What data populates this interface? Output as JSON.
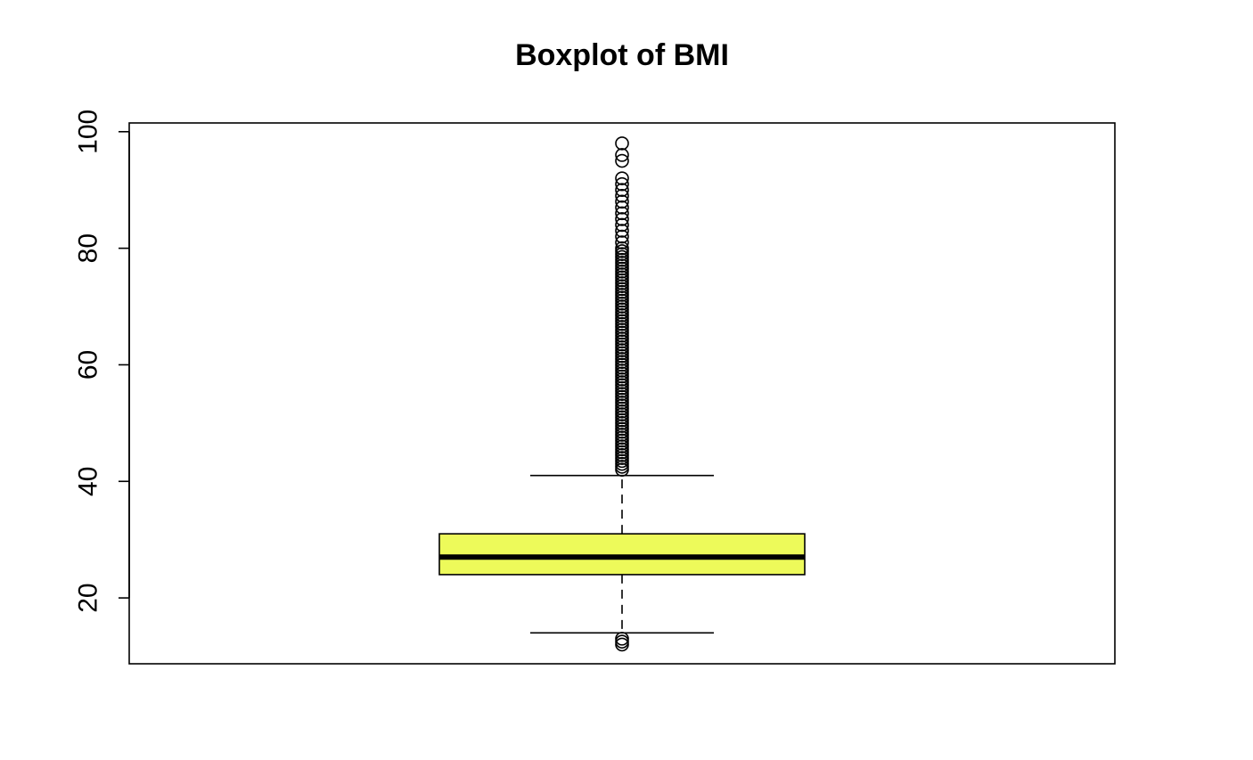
{
  "chart_data": {
    "type": "boxplot",
    "title": "Boxplot of BMI",
    "xlabel": "",
    "ylabel": "",
    "ylim": [
      8.7,
      101.5
    ],
    "yticks": [
      20,
      40,
      60,
      80,
      100
    ],
    "ytick_labels": [
      "20",
      "40",
      "60",
      "80",
      "100"
    ],
    "grid": false,
    "box_color": "#EDFA5A",
    "line_color": "#000000",
    "series": [
      {
        "lower_whisker": 14,
        "q1": 24,
        "median": 27,
        "q3": 31,
        "upper_whisker": 41,
        "outliers": [
          12,
          12.5,
          13,
          42,
          42.5,
          43,
          43.5,
          44,
          44.5,
          45,
          45.5,
          46,
          46.5,
          47,
          47.5,
          48,
          48.5,
          49,
          49.5,
          50,
          50.5,
          51,
          51.5,
          52,
          52.5,
          53,
          53.5,
          54,
          54.5,
          55,
          55.5,
          56,
          56.5,
          57,
          57.5,
          58,
          58.5,
          59,
          59.5,
          60,
          60.5,
          61,
          61.5,
          62,
          62.5,
          63,
          63.5,
          64,
          64.5,
          65,
          65.5,
          66,
          66.5,
          67,
          67.5,
          68,
          68.5,
          69,
          69.5,
          70,
          70.5,
          71,
          71.5,
          72,
          72.5,
          73,
          73.5,
          74,
          74.5,
          75,
          75.5,
          76,
          76.5,
          77,
          77.5,
          78,
          78.5,
          79,
          79.5,
          80,
          81,
          82,
          83,
          84,
          85,
          86,
          87,
          88,
          89,
          90,
          91,
          92,
          95,
          96,
          98
        ]
      }
    ]
  }
}
